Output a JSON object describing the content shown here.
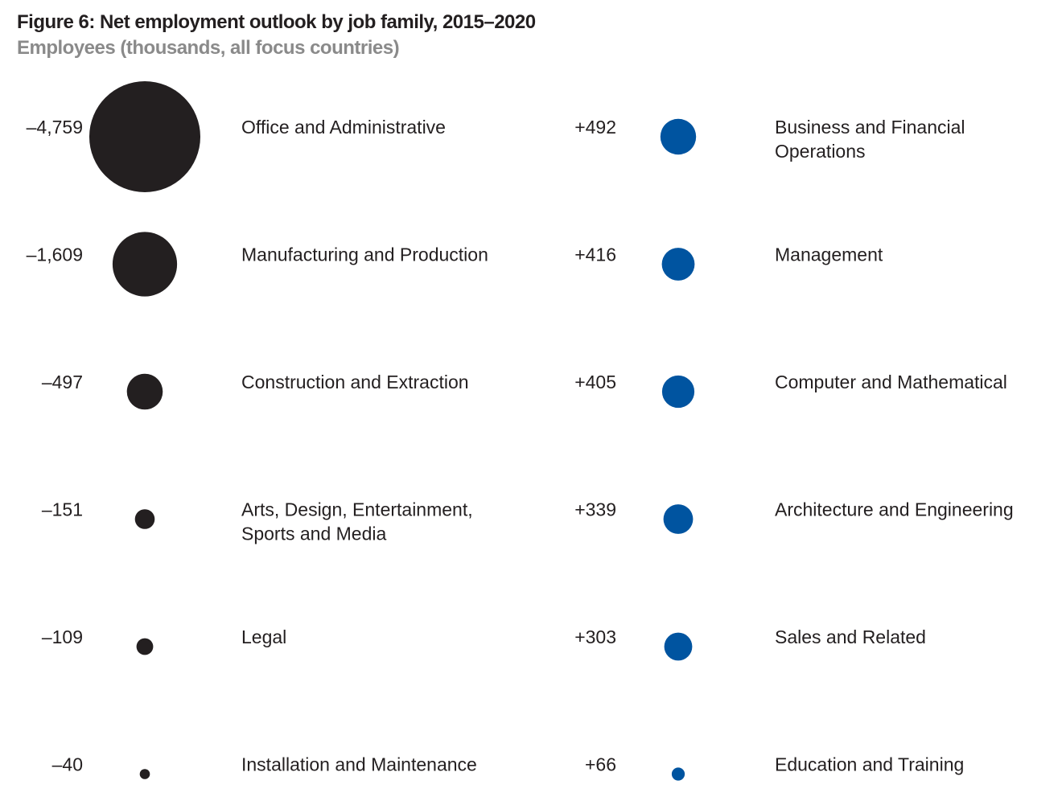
{
  "header": {
    "title": "Figure 6: Net employment outlook by job family, 2015–2020",
    "subtitle": "Employees (thousands, all focus countries)"
  },
  "colors": {
    "negative": "#231f20",
    "positive": "#0054a0",
    "text": "#231f20",
    "subtitle": "#8a8a8a"
  },
  "chart_data": {
    "type": "bubble",
    "title": "Figure 6: Net employment outlook by job family, 2015–2020",
    "subtitle": "Employees (thousands, all focus countries)",
    "series": [
      {
        "name": "",
        "sign": "negative",
        "points": [
          {
            "value": -4759,
            "label": "–4,759",
            "category": [
              "Office and Administrative"
            ]
          },
          {
            "value": -1609,
            "label": "–1,609",
            "category": [
              "Manufacturing and Production"
            ]
          },
          {
            "value": -497,
            "label": "–497",
            "category": [
              "Construction and Extraction"
            ]
          },
          {
            "value": -151,
            "label": "–151",
            "category": [
              "Arts, Design, Entertainment,",
              "Sports and Media"
            ]
          },
          {
            "value": -109,
            "label": "–109",
            "category": [
              "Legal"
            ]
          },
          {
            "value": -40,
            "label": "–40",
            "category": [
              "Installation and Maintenance"
            ]
          }
        ]
      },
      {
        "name": "",
        "sign": "positive",
        "points": [
          {
            "value": 492,
            "label": "+492",
            "category": [
              "Business and Financial",
              "Operations"
            ]
          },
          {
            "value": 416,
            "label": "+416",
            "category": [
              "Management"
            ]
          },
          {
            "value": 405,
            "label": "+405",
            "category": [
              "Computer and Mathematical"
            ]
          },
          {
            "value": 339,
            "label": "+339",
            "category": [
              "Architecture and Engineering"
            ]
          },
          {
            "value": 303,
            "label": "+303",
            "category": [
              "Sales and Related"
            ]
          },
          {
            "value": 66,
            "label": "+66",
            "category": [
              "Education and Training"
            ]
          }
        ]
      }
    ]
  }
}
